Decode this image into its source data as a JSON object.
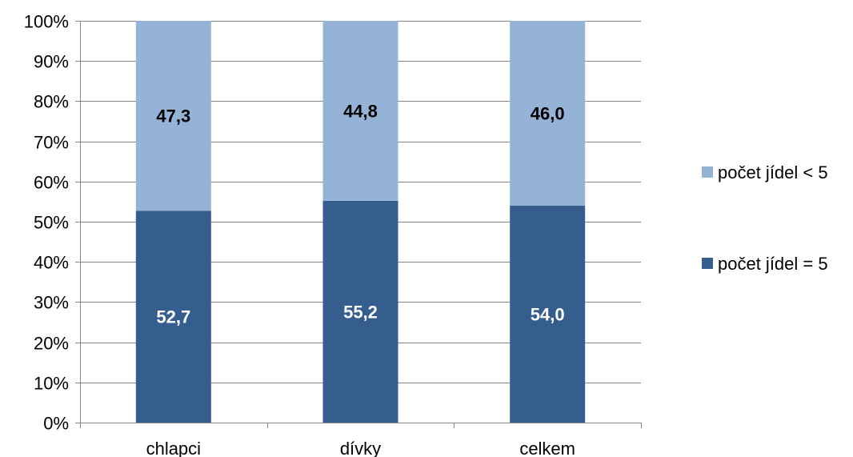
{
  "chart_data": {
    "type": "bar",
    "stacked": true,
    "percent_stacked": true,
    "categories": [
      "chlapci",
      "dívky",
      "celkem"
    ],
    "series": [
      {
        "name": "počet jídel = 5",
        "values": [
          52.7,
          55.2,
          54.0
        ],
        "labels": [
          "52,7",
          "55,2",
          "54,0"
        ],
        "color": "#355E8F",
        "label_color": "#ffffff"
      },
      {
        "name": "počet jídel < 5",
        "values": [
          47.3,
          44.8,
          46.0
        ],
        "labels": [
          "47,3",
          "44,8",
          "46,0"
        ],
        "color": "#95B3D7",
        "label_color": "#000000"
      }
    ],
    "yticks": [
      "0%",
      "10%",
      "20%",
      "30%",
      "40%",
      "50%",
      "60%",
      "70%",
      "80%",
      "90%",
      "100%"
    ],
    "ylim": [
      0,
      100
    ],
    "grid": true,
    "legend_position": "right",
    "legend_order": [
      "počet jídel < 5",
      "počet jídel = 5"
    ],
    "gridline_color": "#868686",
    "axis_color": "#868686"
  }
}
